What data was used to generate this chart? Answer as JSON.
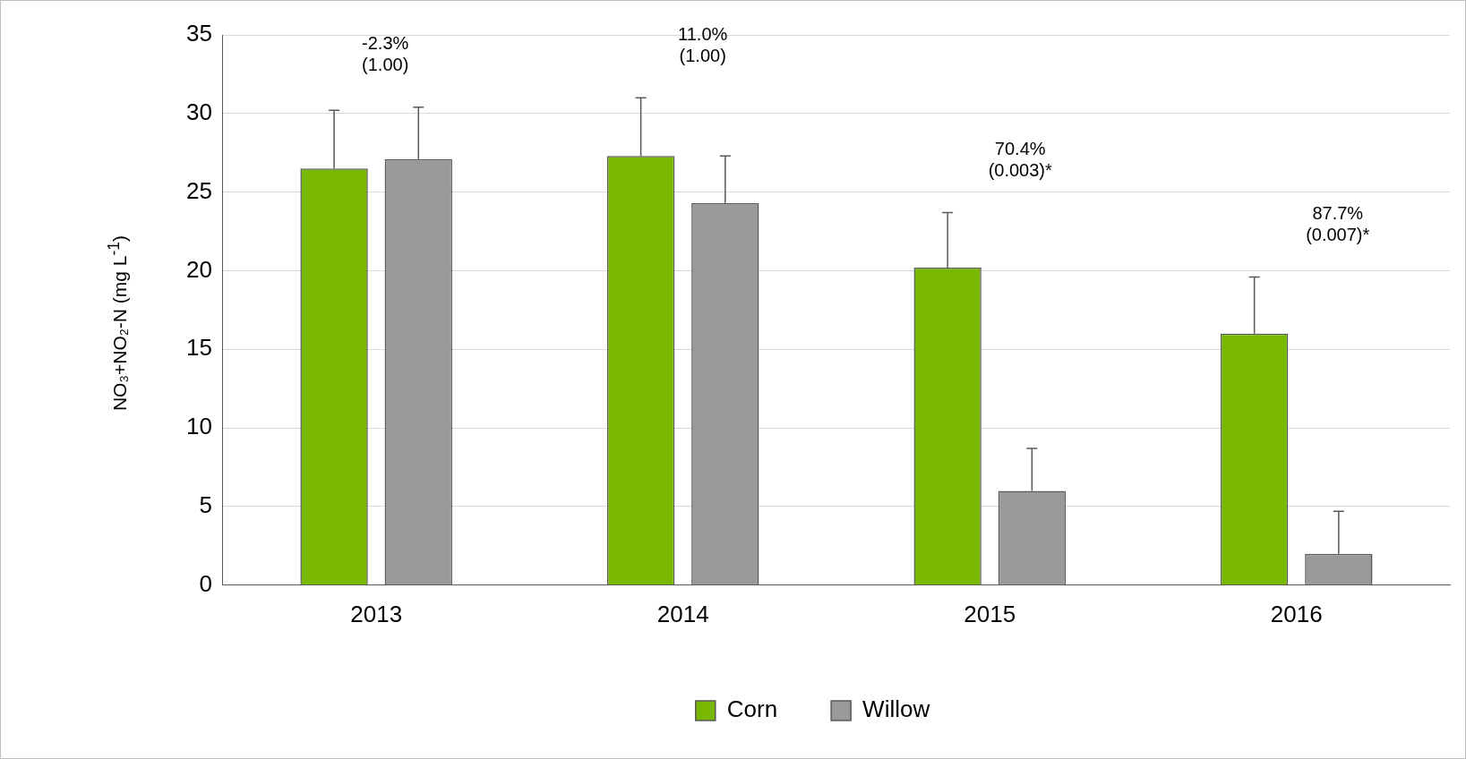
{
  "chart_data": {
    "type": "bar",
    "ylabel": "NO₃+NO₂-N (mg L$^{-1}$)",
    "categories": [
      "2013",
      "2014",
      "2015",
      "2016"
    ],
    "series": [
      {
        "name": "Corn",
        "color": "#78b800",
        "values": [
          26.5,
          27.3,
          20.2,
          16.0
        ],
        "errors": [
          [
            26.5,
            30.2
          ],
          [
            27.3,
            31.0
          ],
          [
            20.2,
            23.7
          ],
          [
            16.0,
            19.6
          ]
        ]
      },
      {
        "name": "Willow",
        "color": "#999999",
        "values": [
          27.1,
          24.3,
          6.0,
          2.0
        ],
        "errors": [
          [
            27.1,
            30.4
          ],
          [
            24.3,
            27.3
          ],
          [
            6.0,
            8.7
          ],
          [
            2.0,
            4.7
          ]
        ]
      }
    ],
    "ylim": [
      0,
      35
    ],
    "yticks": [
      0,
      5,
      10,
      15,
      20,
      25,
      30,
      35
    ],
    "grid": "y",
    "legend": "bottom",
    "annotations": [
      "-2.3%\n(1.00)",
      "11.0%\n(1.00)",
      "70.4%\n(0.003)*",
      "87.7%\n(0.007)*"
    ]
  }
}
